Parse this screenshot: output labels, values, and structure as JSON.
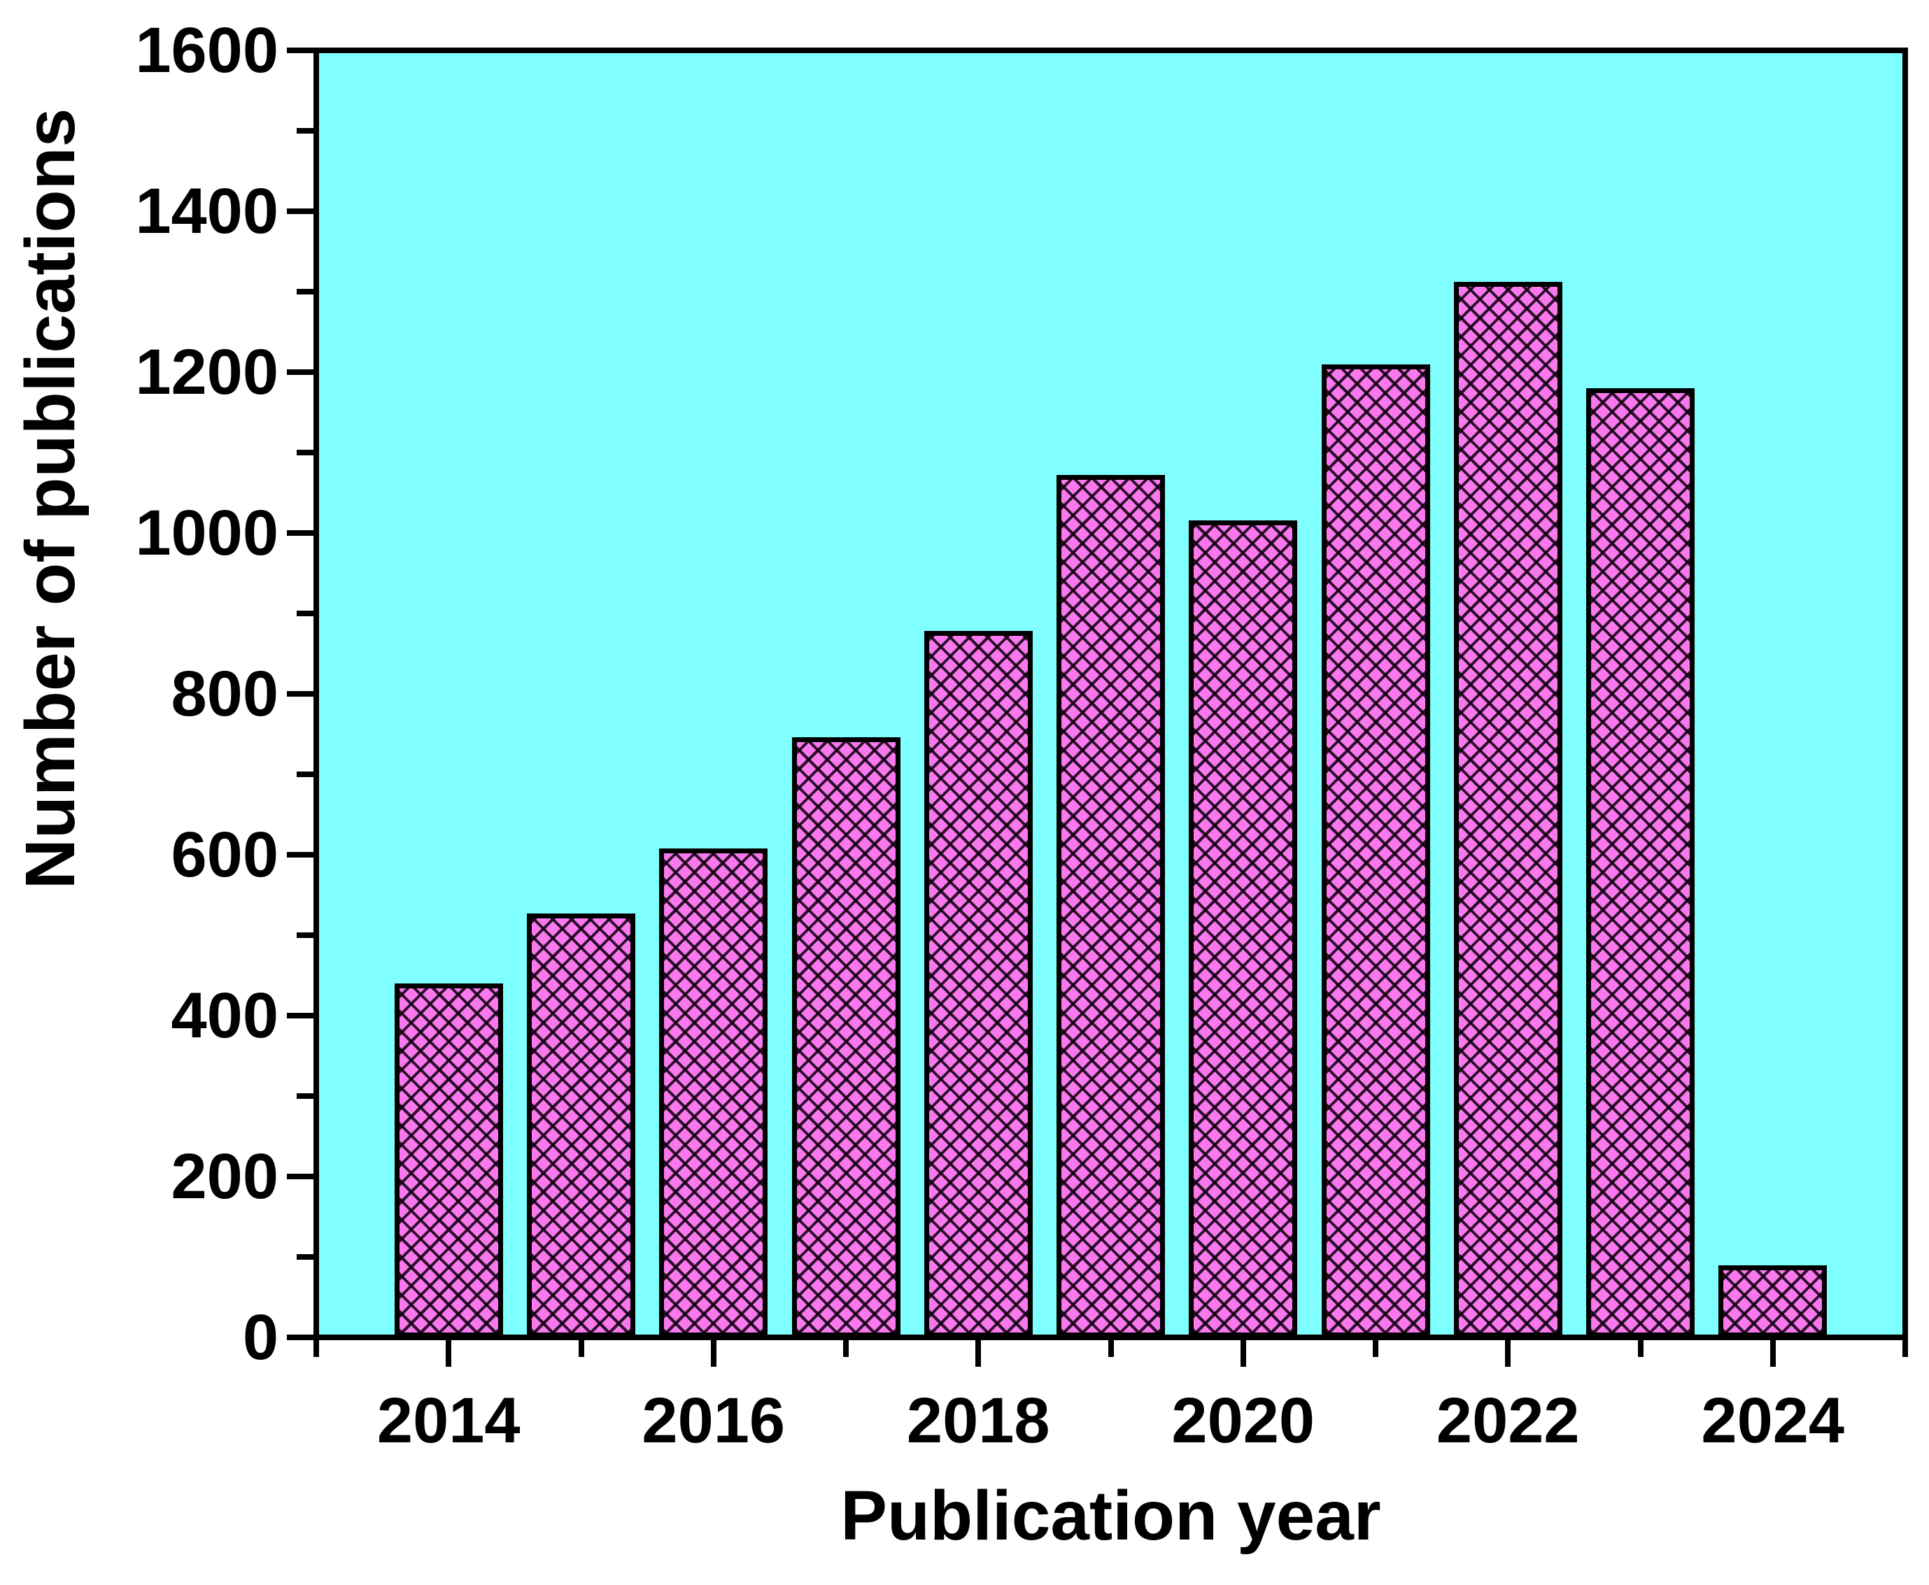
{
  "figure": {
    "background_color": "#FFFFFF",
    "plot_background_color": "#7FFFFF",
    "frame_color": "#000000"
  },
  "chart_data": {
    "type": "bar",
    "title": "",
    "xlabel": "Publication year",
    "ylabel": "Number of publications",
    "categories": [
      "2014",
      "2015",
      "2016",
      "2017",
      "2018",
      "2019",
      "2020",
      "2021",
      "2022",
      "2023",
      "2024"
    ],
    "values": [
      440,
      527,
      608,
      746,
      878,
      1072,
      1016,
      1210,
      1312,
      1180,
      90
    ],
    "ylim": [
      0,
      1600
    ],
    "xlim": [
      2013,
      2025
    ],
    "y_major_step": 200,
    "y_minor_step": 100,
    "y_tick_labels": [
      "0",
      "200",
      "400",
      "600",
      "800",
      "1000",
      "1200",
      "1400",
      "1600"
    ],
    "x_major_tick_years": [
      2014,
      2016,
      2018,
      2020,
      2022,
      2024
    ],
    "x_tick_labels": [
      "2014",
      "2016",
      "2018",
      "2020",
      "2022",
      "2024"
    ],
    "x_minor_tick_years": [
      2013,
      2015,
      2017,
      2019,
      2021,
      2023,
      2025
    ],
    "grid": false,
    "legend_position": "none",
    "bar_fill_color": "#FA78EE",
    "bar_hatch": "dense-black-crosshatch",
    "bar_border_color": "#000000",
    "tick_label_color": "#000000",
    "axis_title_color": "#000000"
  }
}
